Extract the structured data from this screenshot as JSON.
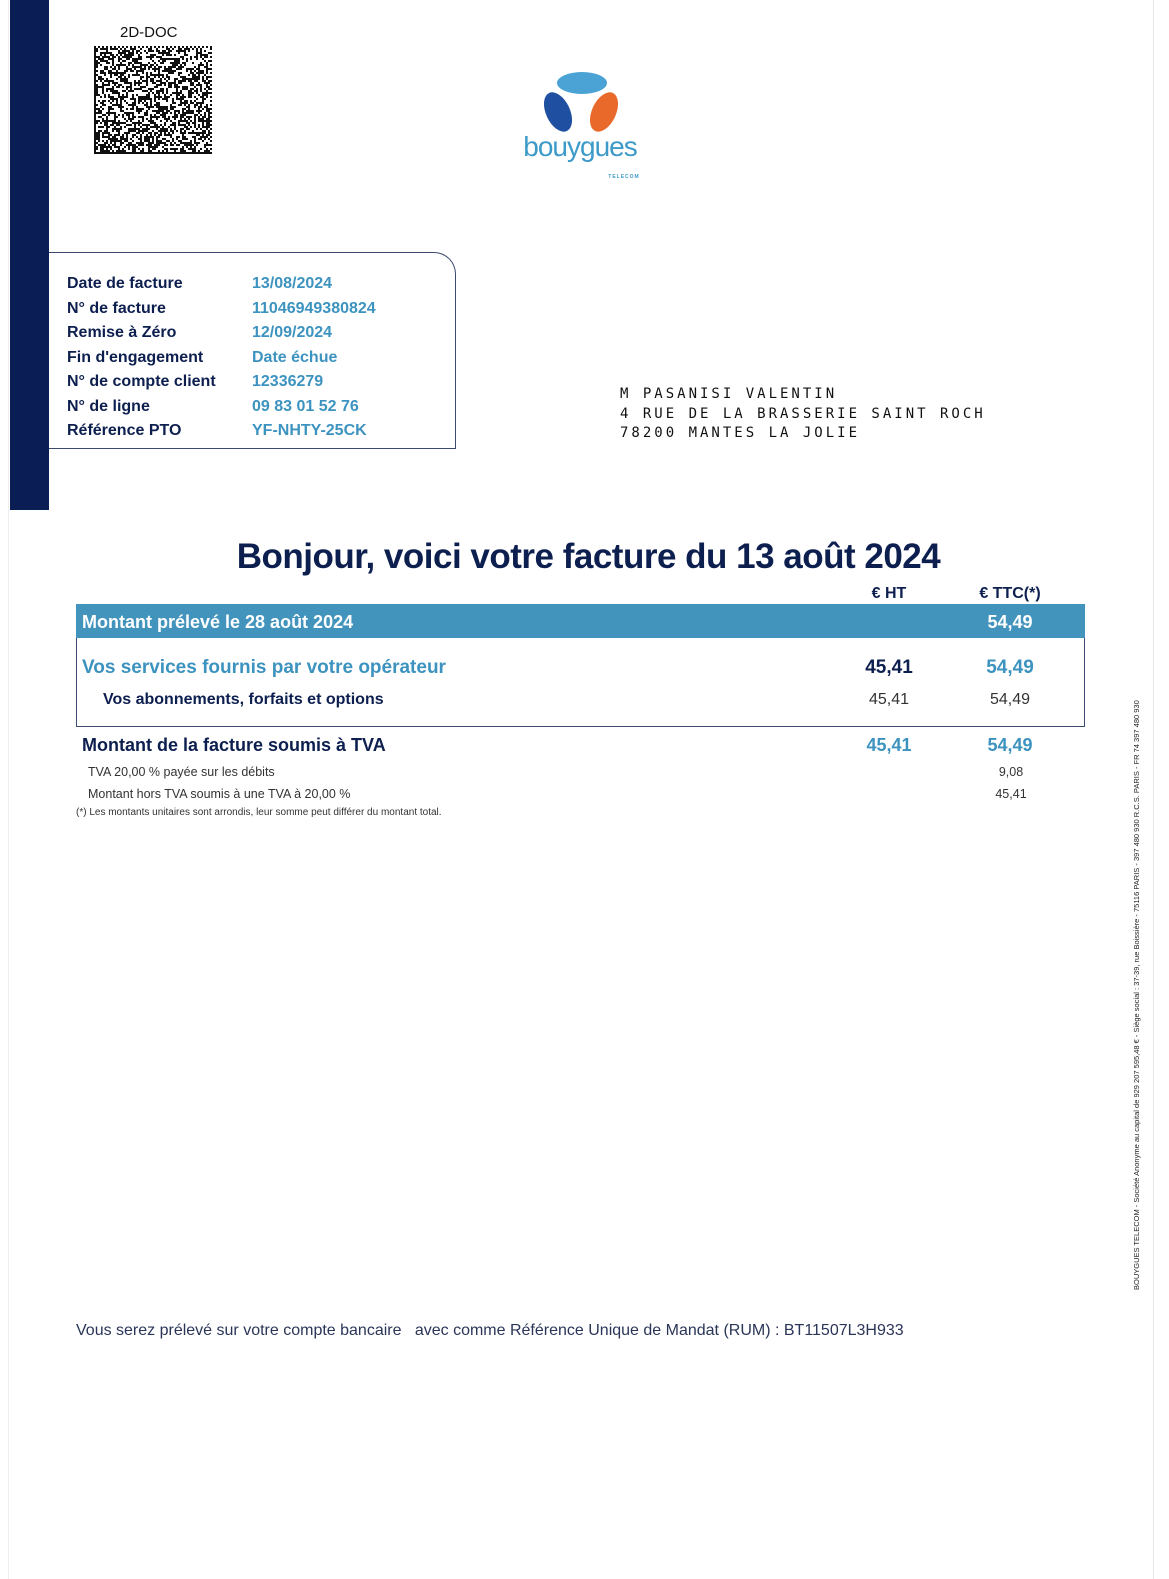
{
  "barcode": {
    "label": "2D-DOC"
  },
  "brand": {
    "name": "bouygues",
    "sub": "TELECOM",
    "colors": {
      "top": "#4aa3d4",
      "left": "#1f4fa0",
      "right": "#e8692a",
      "text": "#3d9ac9"
    }
  },
  "colors": {
    "navy": "#0a1d54",
    "accent": "#3d93bf",
    "header_bar": "#4394bd"
  },
  "info": [
    {
      "label": "Date de facture",
      "value": "13/08/2024"
    },
    {
      "label": "N° de facture",
      "value": "11046949380824"
    },
    {
      "label": "Remise à Zéro",
      "value": "12/09/2024"
    },
    {
      "label": "Fin d'engagement",
      "value": "Date échue"
    },
    {
      "label": "N° de compte client",
      "value": "12336279"
    },
    {
      "label": "N° de ligne",
      "value": "09 83 01 52 76"
    },
    {
      "label": "Référence PTO",
      "value": "YF-NHTY-25CK"
    }
  ],
  "address": [
    "M PASANISI VALENTIN",
    "4 RUE DE LA BRASSERIE SAINT ROCH",
    "78200 MANTES LA JOLIE"
  ],
  "title": "Bonjour, voici votre facture du 13 août 2024",
  "table": {
    "col_ht": "€ HT",
    "col_ttc": "€ TTC(*)",
    "header": {
      "label": "Montant prélevé le 28 août 2024",
      "ttc": "54,49"
    },
    "services": {
      "label": "Vos services fournis par votre opérateur",
      "ht": "45,41",
      "ttc": "54,49"
    },
    "subscriptions": {
      "label": "Vos abonnements, forfaits et options",
      "ht": "45,41",
      "ttc": "54,49"
    },
    "tva_total": {
      "label": "Montant de la facture soumis à TVA",
      "ht": "45,41",
      "ttc": "54,49"
    },
    "tva_paid": {
      "label": "TVA 20,00 % payée sur les débits",
      "ttc": "9,08"
    },
    "ht_base": {
      "label": "Montant hors TVA soumis à une TVA à 20,00 %",
      "ttc": "45,41"
    },
    "footnote": "(*) Les montants unitaires sont arrondis, leur somme peut différer du montant total."
  },
  "payment_note": "Vous serez prélevé sur votre compte bancaire   avec comme Référence Unique de Mandat (RUM) : BT11507L3H933",
  "legal": "BOUYGUES TELECOM - Société Anonyme au capital de 929 207 595,48 € - Siège social : 37-39, rue Boissière - 75116 PARIS - 397 480 930 R.C.S. PARIS - FR 74 397 480 930"
}
